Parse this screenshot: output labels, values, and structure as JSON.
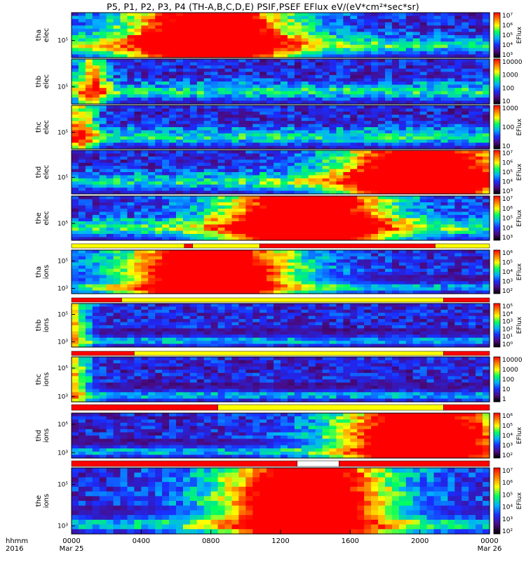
{
  "title": "P5, P1, P2, P3, P4 (TH-A,B,C,D,E) PSIF,PSEF EFlux eV/(eV*cm²*sec*sr)",
  "chart_data": {
    "type": "heatmap",
    "x_axis": {
      "ticks": [
        "0000",
        "0400",
        "0800",
        "1200",
        "1600",
        "2000",
        "0000"
      ],
      "date_labels": {
        "start": "Mar 25",
        "end": "Mar 26"
      },
      "row_label": "hhmm",
      "year": "2016"
    },
    "colorbar_label": "EFlux",
    "panels": [
      {
        "name": "tha-elec",
        "ylabel": [
          "tha",
          "elec"
        ],
        "yticks": [
          "10⁵"
        ],
        "cbar_ticks": [
          "10⁷",
          "10⁶",
          "10⁵",
          "10⁴",
          "10³"
        ],
        "cbar_label": "EFlux"
      },
      {
        "name": "thb-elec",
        "ylabel": [
          "thb",
          "elec"
        ],
        "yticks": [
          "10⁵"
        ],
        "cbar_ticks": [
          "10000",
          "1000",
          "100",
          "10"
        ],
        "cbar_label": ""
      },
      {
        "name": "thc-elec",
        "ylabel": [
          "thc",
          "elec"
        ],
        "yticks": [
          "10⁵"
        ],
        "cbar_ticks": [
          "1000",
          "100",
          "10"
        ],
        "cbar_label": "EFlux"
      },
      {
        "name": "thd-elec",
        "ylabel": [
          "thd",
          "elec"
        ],
        "yticks": [
          "10⁵"
        ],
        "cbar_ticks": [
          "10⁷",
          "10⁶",
          "10⁵",
          "10⁴",
          "10³"
        ],
        "cbar_label": "EFlux"
      },
      {
        "name": "the-elec",
        "ylabel": [
          "the",
          "elec"
        ],
        "yticks": [
          "10⁵"
        ],
        "cbar_ticks": [
          "10⁷",
          "10⁶",
          "10⁵",
          "10⁴",
          "10³"
        ],
        "cbar_label": "EFlux"
      },
      {
        "name": "tha-ions",
        "ylabel": [
          "tha",
          "ions"
        ],
        "yticks": [
          "10⁵",
          "10³"
        ],
        "cbar_ticks": [
          "10⁶",
          "10⁵",
          "10⁴",
          "10³",
          "10²"
        ],
        "cbar_label": "EFlux"
      },
      {
        "name": "thb-ions",
        "ylabel": [
          "thb",
          "ions"
        ],
        "yticks": [
          "10⁵",
          "10³"
        ],
        "cbar_ticks": [
          "10⁵",
          "10⁴",
          "10³",
          "10²",
          "10¹",
          "10⁰"
        ],
        "cbar_label": "EFlux"
      },
      {
        "name": "thc-ions",
        "ylabel": [
          "thc",
          "ions"
        ],
        "yticks": [
          "10⁵",
          "10³"
        ],
        "cbar_ticks": [
          "10000",
          "1000",
          "100",
          "10",
          "1"
        ],
        "cbar_label": ""
      },
      {
        "name": "thd-ions",
        "ylabel": [
          "thd",
          "ions"
        ],
        "yticks": [
          "10⁵",
          "10³"
        ],
        "cbar_ticks": [
          "10⁶",
          "10⁵",
          "10⁴",
          "10³",
          "10²"
        ],
        "cbar_label": "EFlux"
      },
      {
        "name": "the-ions",
        "ylabel": [
          "the",
          "ions"
        ],
        "yticks": [
          "10⁵",
          "10³"
        ],
        "cbar_ticks": [
          "10⁷",
          "10⁶",
          "10⁵",
          "10⁴",
          "10³",
          "10²"
        ],
        "cbar_label": "EFlux"
      }
    ],
    "colormap": [
      "#000000",
      "#4a0a80",
      "#1a2cff",
      "#00b0ff",
      "#00ff60",
      "#ffff00",
      "#ff8000",
      "#ff0000"
    ],
    "status_bar_colors": {
      "a": "#ff0000",
      "b": "#ffff00",
      "c": "#ffffff"
    }
  }
}
